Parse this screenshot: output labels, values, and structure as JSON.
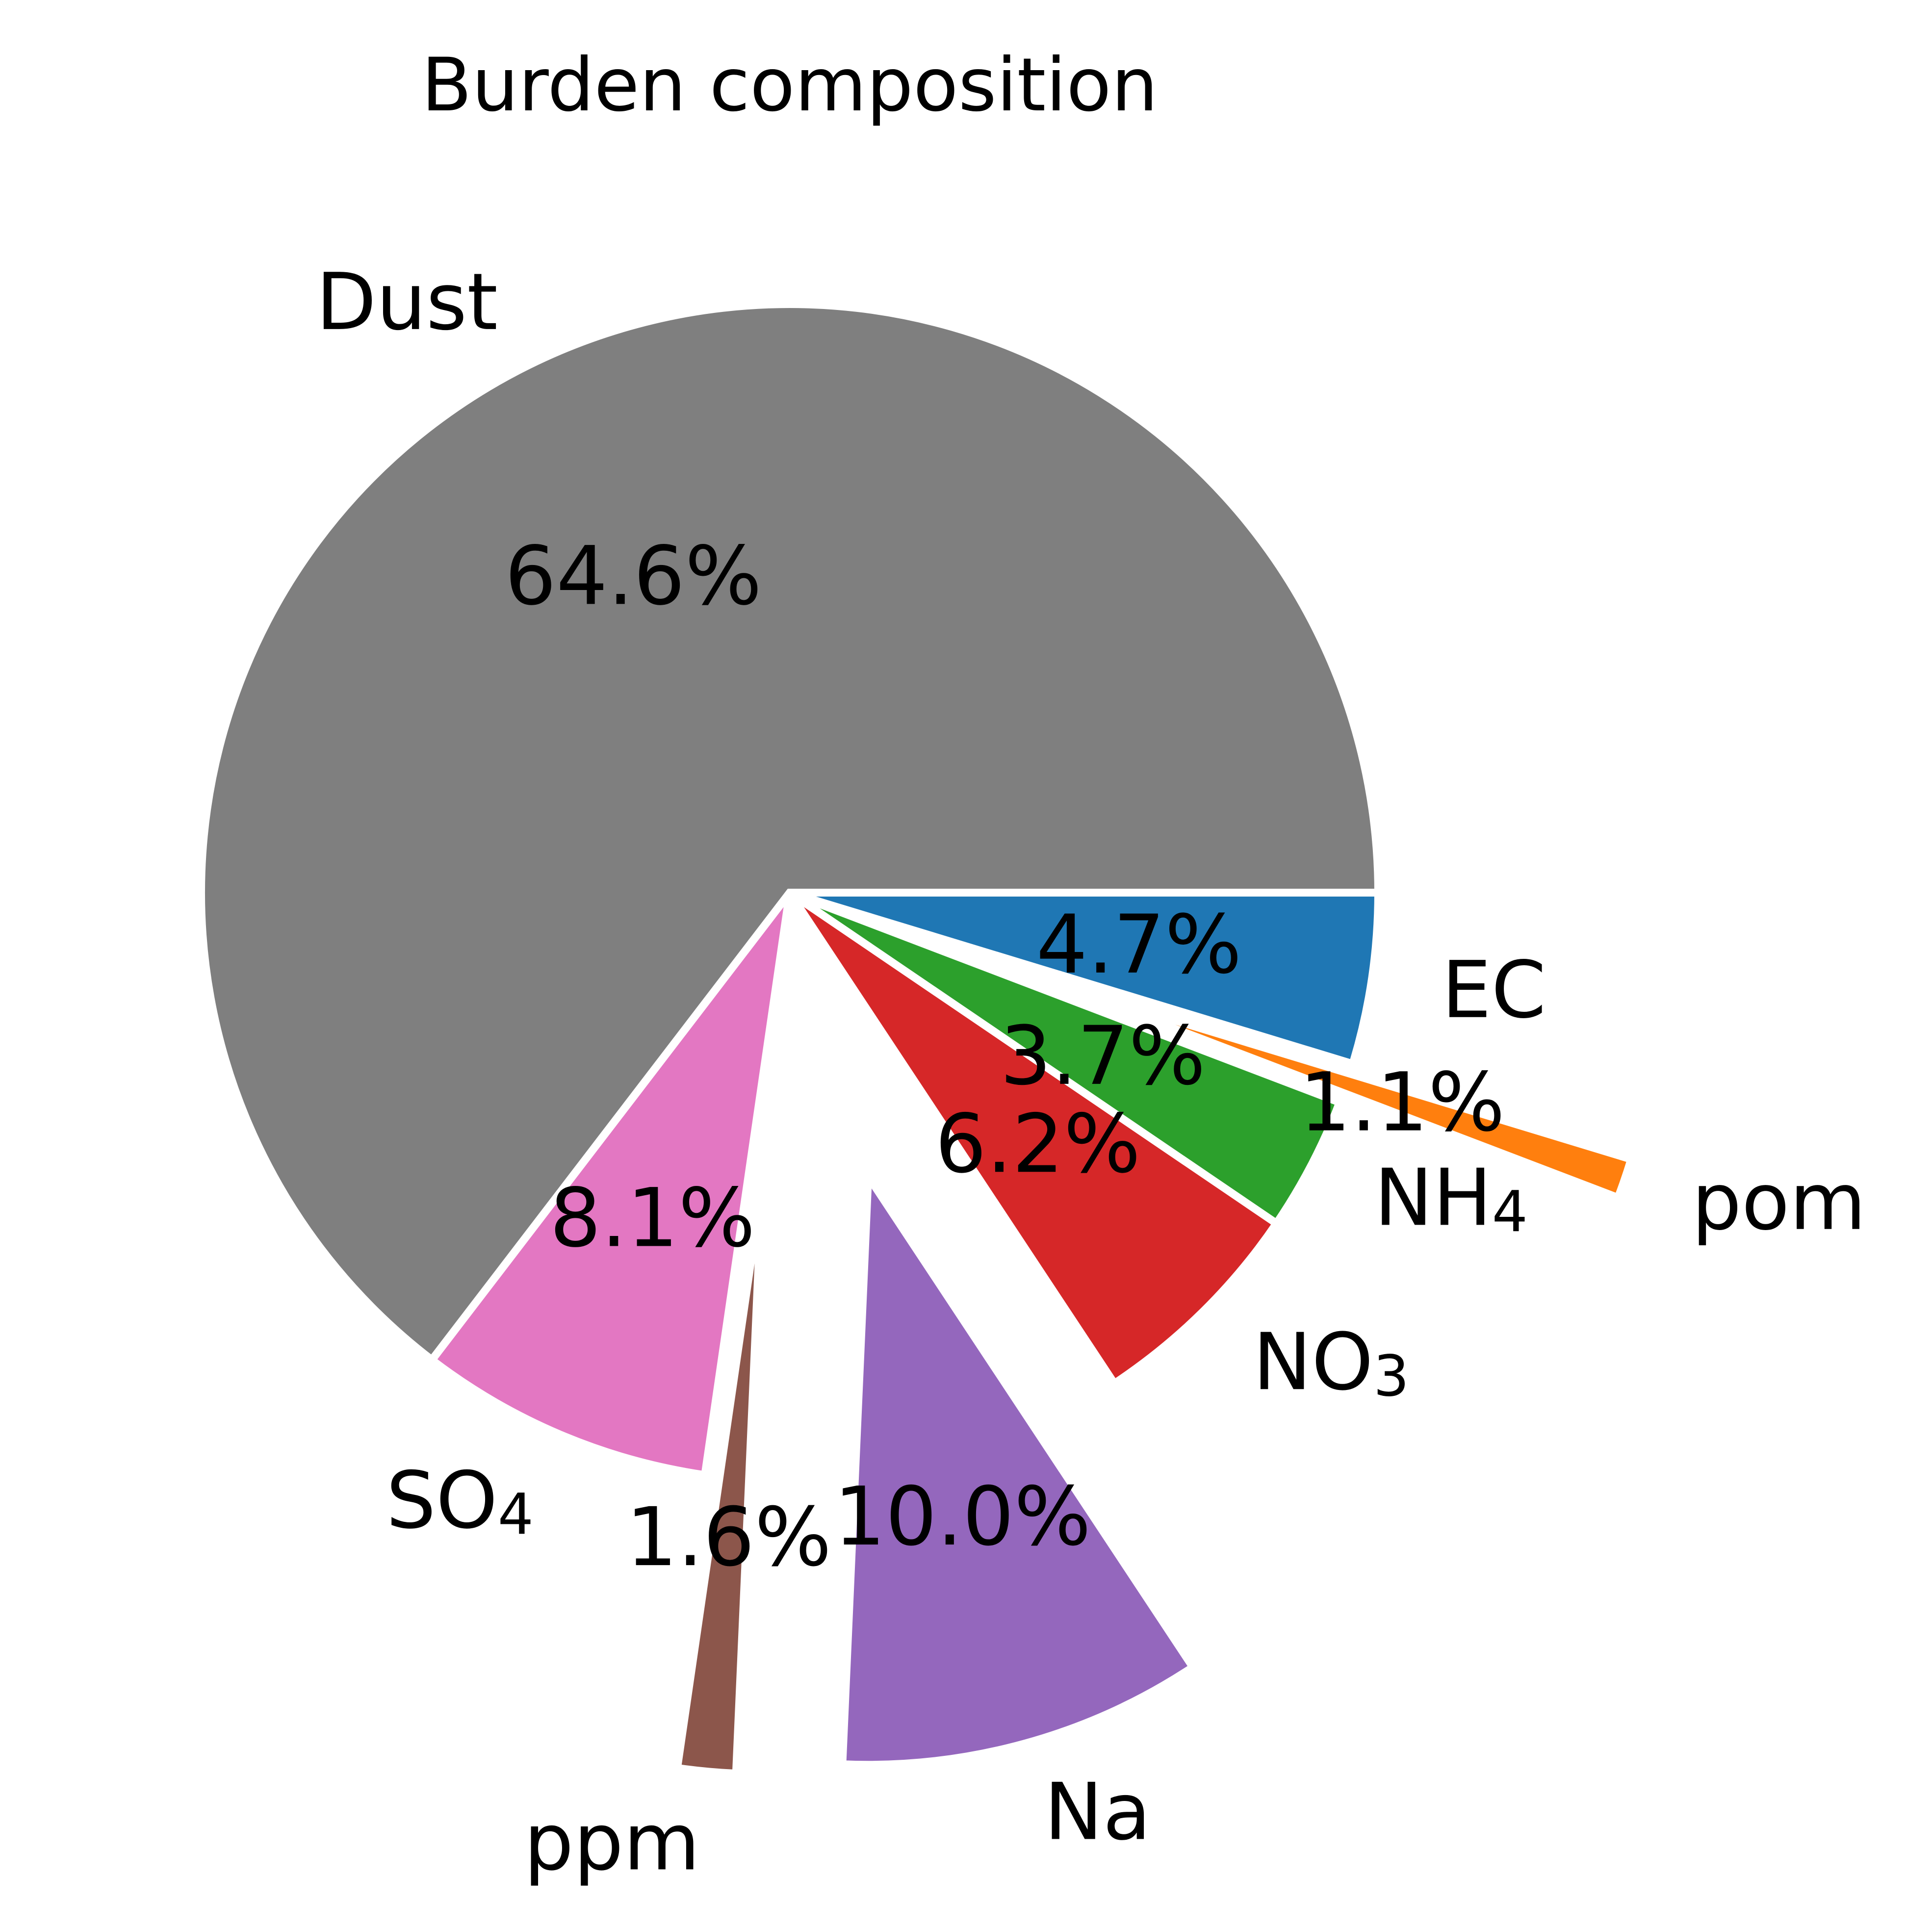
{
  "chart_data": {
    "type": "pie",
    "title": "Burden composition",
    "start_angle": 0,
    "direction": "clockwise",
    "slices": [
      {
        "label": "EC",
        "sub": "",
        "value": 4.7,
        "pct_label": "4.7%",
        "color": "#1f77b4",
        "exploded": false
      },
      {
        "label": "pom",
        "sub": "",
        "value": 1.1,
        "pct_label": "1.1%",
        "color": "#ff7f0e",
        "exploded": true
      },
      {
        "label": "NH",
        "sub": "4",
        "value": 3.7,
        "pct_label": "3.7%",
        "color": "#2ca02c",
        "exploded": false
      },
      {
        "label": "NO",
        "sub": "3",
        "value": 6.2,
        "pct_label": "6.2%",
        "color": "#d62728",
        "exploded": false
      },
      {
        "label": "Na",
        "sub": "",
        "value": 10.0,
        "pct_label": "10.0%",
        "color": "#9467bd",
        "exploded": true
      },
      {
        "label": "ppm",
        "sub": "",
        "value": 1.6,
        "pct_label": "1.6%",
        "color": "#8c564b",
        "exploded": true
      },
      {
        "label": "SO",
        "sub": "4",
        "value": 8.1,
        "pct_label": "8.1%",
        "color": "#e377c2",
        "exploded": false
      },
      {
        "label": "Dust",
        "sub": "",
        "value": 64.6,
        "pct_label": "64.6%",
        "color": "#7f7f7f",
        "exploded": false
      }
    ]
  }
}
